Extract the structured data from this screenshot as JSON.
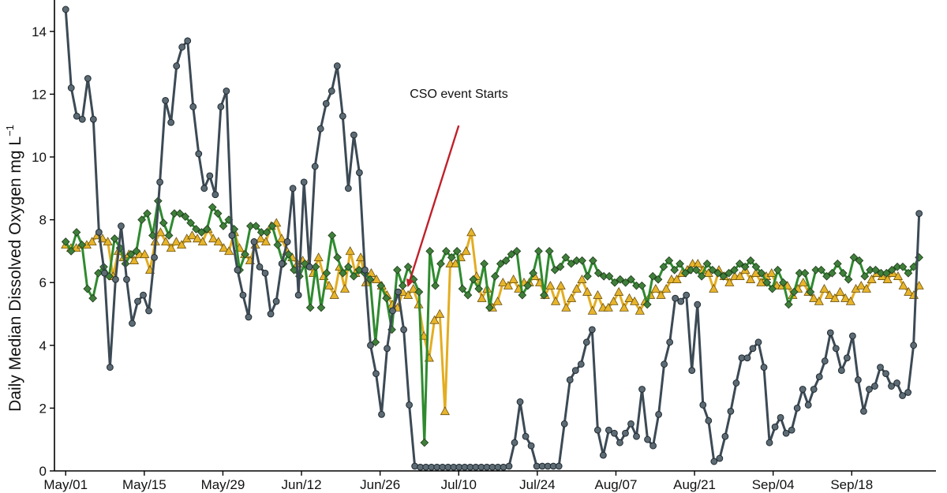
{
  "chart_data": {
    "type": "line",
    "ylabel": "Daily Median Dissolved Oxygen mg L",
    "ylabel_superscript": "−1",
    "ylim": [
      0,
      15
    ],
    "yticks": [
      0,
      2,
      4,
      6,
      8,
      10,
      12,
      14
    ],
    "xlim": [
      "2017-04-29",
      "2017-10-03"
    ],
    "xtick_dates": [
      "2017-05-01",
      "2017-05-15",
      "2017-05-29",
      "2017-06-12",
      "2017-06-26",
      "2017-07-10",
      "2017-07-24",
      "2017-08-07",
      "2017-08-21",
      "2017-09-04",
      "2017-09-18"
    ],
    "xtick_labels": [
      "May/01",
      "May/15",
      "May/29",
      "Jun/12",
      "Jun/26",
      "Jul/10",
      "Jul/24",
      "Aug/07",
      "Aug/21",
      "Sep/04",
      "Sep/18"
    ],
    "grid": false,
    "x_start": "2017-05-01",
    "x_end": "2017-09-30",
    "series": [
      {
        "color": "#3c4a55",
        "fill": "#5d6b75",
        "marker": "circle",
        "values": [
          14.7,
          12.2,
          11.3,
          11.2,
          12.5,
          11.2,
          7.6,
          6.3,
          3.3,
          6.1,
          7.8,
          6.1,
          4.7,
          5.4,
          5.6,
          5.1,
          6.8,
          9.2,
          11.8,
          11.1,
          12.9,
          13.5,
          13.7,
          11.6,
          10.1,
          9.0,
          9.4,
          8.8,
          11.6,
          12.1,
          7.5,
          6.4,
          5.6,
          4.9,
          7.3,
          6.5,
          6.3,
          5.0,
          5.4,
          6.6,
          7.3,
          9.0,
          5.6,
          9.2,
          6.5,
          9.7,
          10.9,
          11.7,
          12.1,
          12.9,
          11.3,
          9.0,
          10.7,
          9.5,
          6.4,
          4.0,
          3.1,
          1.8,
          3.9,
          5.1,
          5.7,
          4.5,
          2.1,
          0.15,
          0.12,
          0.12,
          0.12,
          0.12,
          0.12,
          0.12,
          0.12,
          0.12,
          0.12,
          0.12,
          0.12,
          0.12,
          0.12,
          0.12,
          0.12,
          0.12,
          0.15,
          0.9,
          2.2,
          1.1,
          0.8,
          0.15,
          0.15,
          0.15,
          0.15,
          0.15,
          1.5,
          2.9,
          3.2,
          3.4,
          4.1,
          4.5,
          1.3,
          0.5,
          1.3,
          1.2,
          0.9,
          1.2,
          1.5,
          1.1,
          2.6,
          1.0,
          0.8,
          1.8,
          3.4,
          4.1,
          5.5,
          5.4,
          5.6,
          3.2,
          5.3,
          2.1,
          1.6,
          0.3,
          0.4,
          1.1,
          1.9,
          2.8,
          3.6,
          3.6,
          3.9,
          4.1,
          3.3,
          0.9,
          1.4,
          1.7,
          1.2,
          1.3,
          2.0,
          2.6,
          2.1,
          2.6,
          3.0,
          3.5,
          4.4,
          3.9,
          3.2,
          3.6,
          4.3,
          2.9,
          1.9,
          2.6,
          2.7,
          3.3,
          3.1,
          2.7,
          2.8,
          2.4,
          2.5,
          4.0,
          8.2
        ]
      },
      {
        "color": "#2f8a2f",
        "fill": "#3f7f3a",
        "marker": "diamond",
        "values": [
          7.3,
          7.0,
          7.6,
          7.2,
          5.8,
          5.5,
          6.3,
          6.5,
          6.2,
          7.4,
          7.1,
          6.6,
          6.9,
          7.0,
          8.0,
          8.2,
          7.5,
          8.6,
          7.9,
          7.5,
          8.2,
          8.2,
          8.1,
          7.9,
          7.7,
          7.6,
          7.7,
          8.4,
          8.2,
          7.8,
          8.0,
          7.7,
          6.4,
          6.9,
          7.8,
          7.8,
          7.6,
          7.6,
          7.8,
          7.2,
          6.6,
          6.9,
          6.4,
          6.2,
          6.6,
          5.2,
          6.5,
          5.2,
          6.3,
          7.5,
          6.8,
          6.3,
          6.5,
          6.2,
          6.4,
          6.3,
          6.1,
          4.1,
          5.9,
          5.5,
          4.5,
          6.4,
          5.9,
          6.5,
          6.1,
          5.7,
          0.9,
          7.0,
          5.9,
          6.6,
          7.0,
          6.8,
          7.0,
          5.8,
          5.6,
          6.1,
          5.8,
          6.6,
          5.2,
          6.2,
          6.6,
          6.7,
          6.9,
          7.0,
          5.6,
          5.9,
          6.3,
          7.0,
          5.6,
          7.0,
          6.4,
          6.5,
          6.8,
          6.6,
          6.7,
          6.7,
          6.2,
          6.7,
          6.3,
          6.2,
          6.2,
          6.0,
          6.1,
          6.0,
          6.1,
          5.9,
          5.9,
          5.3,
          6.2,
          6.1,
          6.5,
          6.7,
          6.4,
          6.6,
          6.3,
          6.4,
          6.4,
          6.2,
          6.6,
          6.4,
          6.3,
          6.2,
          6.3,
          6.4,
          6.6,
          6.5,
          6.7,
          6.5,
          6.3,
          6.0,
          5.8,
          6.4,
          6.0,
          5.3,
          5.7,
          6.3,
          6.3,
          5.7,
          6.4,
          6.4,
          6.2,
          6.3,
          6.6,
          6.3,
          6.1,
          6.8,
          6.7,
          6.2,
          6.4,
          6.4,
          6.3,
          6.3,
          6.4,
          6.5,
          6.5,
          6.3,
          6.5,
          6.8
        ]
      },
      {
        "color": "#e3ad22",
        "fill": "#e7b42b",
        "marker": "triangle",
        "values": [
          7.2,
          7.1,
          7.1,
          7.2,
          7.2,
          7.3,
          7.5,
          7.4,
          7.3,
          6.2,
          7.0,
          6.8,
          6.9,
          6.7,
          6.9,
          6.9,
          6.4,
          7.3,
          7.6,
          7.3,
          7.1,
          7.3,
          7.2,
          7.4,
          7.5,
          7.4,
          7.3,
          7.7,
          7.4,
          7.3,
          7.1,
          7.0,
          7.6,
          7.1,
          6.9,
          6.7,
          7.2,
          7.4,
          7.3,
          7.8,
          7.9,
          7.4,
          7.0,
          6.8,
          6.6,
          6.7,
          6.6,
          6.3,
          6.8,
          6.2,
          5.9,
          5.6,
          6.5,
          5.8,
          7.0,
          6.3,
          6.8,
          6.0,
          6.3,
          6.1,
          5.9,
          5.6,
          5.3,
          5.2,
          5.7,
          5.6,
          5.8,
          5.3,
          4.3,
          3.6,
          4.8,
          5.0,
          1.9,
          6.6,
          6.6,
          6.8,
          7.0,
          7.6,
          6.2,
          5.5,
          5.8,
          5.2,
          5.4,
          6.0,
          5.9,
          6.1,
          5.8,
          6.0,
          6.0,
          6.2,
          6.0,
          5.6,
          5.9,
          5.4,
          5.9,
          5.2,
          5.5,
          5.8,
          6.1,
          5.7,
          5.1,
          5.6,
          5.2,
          5.2,
          5.4,
          5.7,
          5.2,
          5.5,
          5.4,
          5.1,
          5.4,
          5.6,
          5.8,
          5.6,
          5.8,
          6.1,
          6.1,
          6.3,
          6.4,
          6.6,
          6.6,
          6.4,
          6.3,
          5.8,
          6.4,
          6.2,
          6.0,
          6.2,
          6.2,
          6.4,
          6.1,
          6.3,
          6.0,
          6.2,
          6.3,
          5.9,
          5.9,
          5.9,
          5.6,
          5.8,
          6.0,
          5.7,
          5.5,
          5.4,
          5.8,
          5.6,
          5.5,
          5.7,
          5.5,
          5.4,
          5.8,
          5.9,
          5.8,
          6.1,
          6.3,
          6.2,
          6.1,
          6.3,
          6.2,
          5.9,
          5.7,
          5.6,
          5.9
        ]
      }
    ],
    "annotations": [
      {
        "text": "CSO event Starts",
        "arrow_color": "#c0202a",
        "arrow_from": [
          "2017-07-10",
          11.0
        ],
        "arrow_to": [
          "2017-07-01",
          5.9
        ]
      }
    ]
  }
}
